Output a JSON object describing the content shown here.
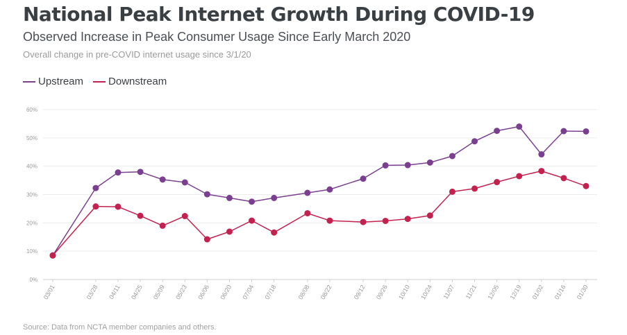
{
  "header": {
    "title": "National Peak Internet Growth During COVID-19",
    "subtitle": "Observed Increase in Peak Consumer Usage Since Early March 2020",
    "subsubtitle": "Overall change in pre-COVID internet usage since 3/1/20"
  },
  "footer": {
    "source": "Source: Data from NCTA member companies and others."
  },
  "colors": {
    "upstream": "#7b3f8f",
    "downstream": "#c3214f",
    "grid": "#ececec",
    "tick_text": "#9a9a9a"
  },
  "chart_data": {
    "type": "line",
    "title": "National Peak Internet Growth During COVID-19",
    "subtitle": "Observed Increase in Peak Consumer Usage Since Early March 2020",
    "categories": [
      "03/01",
      "03/28",
      "04/11",
      "04/25",
      "05/09",
      "05/23",
      "06/06",
      "06/20",
      "07/04",
      "07/18",
      "08/08",
      "08/22",
      "09/12",
      "09/26",
      "10/10",
      "10/24",
      "11/07",
      "11/21",
      "12/05",
      "12/19",
      "01/02",
      "01/16",
      "01/30"
    ],
    "series": [
      {
        "name": "Upstream",
        "color": "#7b3f8f",
        "values": [
          8.5,
          32.3,
          37.8,
          38.0,
          35.3,
          34.3,
          30.1,
          28.8,
          27.5,
          28.8,
          30.6,
          31.8,
          35.6,
          40.3,
          40.4,
          41.3,
          43.6,
          48.8,
          52.5,
          54.0,
          44.2,
          52.4,
          52.3
        ]
      },
      {
        "name": "Downstream",
        "color": "#c3214f",
        "values": [
          8.5,
          25.8,
          25.7,
          22.5,
          19.0,
          22.4,
          14.2,
          16.9,
          20.8,
          16.6,
          23.4,
          20.8,
          20.3,
          20.7,
          21.4,
          22.6,
          31.0,
          32.1,
          34.4,
          36.5,
          38.3,
          35.8,
          33.0
        ]
      }
    ],
    "ylim": [
      0,
      60
    ],
    "yticks": [
      "0%",
      "10%",
      "20%",
      "30%",
      "40%",
      "50%",
      "60%"
    ],
    "xlabel": "",
    "ylabel": "",
    "grid": true,
    "legend": "top-left"
  }
}
